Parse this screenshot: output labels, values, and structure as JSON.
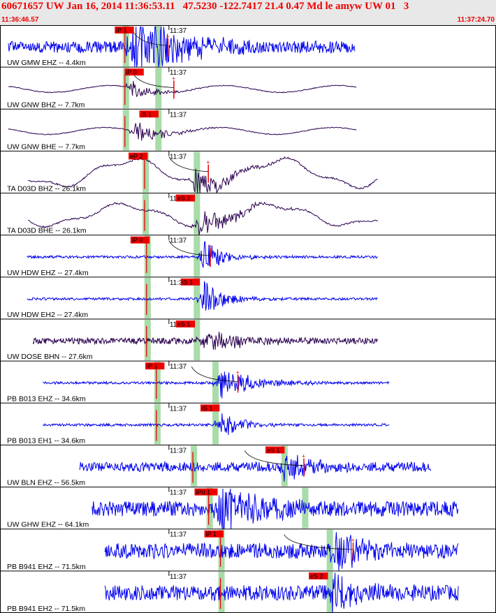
{
  "header": {
    "title": "60671657 UW Jan 16, 2014 11:36:53.11   47.5230 -122.7417 21.4 0.47 Md le amyw UW 01   3",
    "start_time": "11:36:46.57",
    "end_time": "11:37:24.70"
  },
  "chart_data": {
    "type": "seismogram",
    "time_window": [
      "11:36:46.57",
      "11:37:24.70"
    ],
    "minute_tick_label": "11:37",
    "colors": {
      "short_period": "#0000ee",
      "broadband": "#2a0050",
      "pick": "#ee0000",
      "phase_window": "#a8dca8",
      "header_bg": "#e8e8e8"
    },
    "traces": [
      {
        "label": "UW GMW EHZ -- 4.4km",
        "pick": "iP 1",
        "color": "#0000ee",
        "t_start": 0,
        "t_end": 35.2,
        "tick": 16.3,
        "pick_t": 10.8,
        "pick_dir": "up",
        "windows": [
          11.9,
          15.2
        ],
        "coda": [
          12.6,
          16.2
        ],
        "amp": 17,
        "burst_t": 12.2,
        "burst_width": 5.5,
        "burst_gain": 3.5,
        "nature": "noisy"
      },
      {
        "label": "UW GNW BHZ -- 7.7km",
        "pick": "iP 0",
        "color": "#2a0050",
        "t_start": 0,
        "t_end": 35.4,
        "tick": 16.3,
        "pick_t": 11.8,
        "pick_dir": "up",
        "windows": [
          11.9,
          15.2
        ],
        "coda": [
          12.6,
          16.8
        ],
        "amp": 9,
        "burst_t": 12.2,
        "burst_width": 3.0,
        "burst_gain": 1.5,
        "nature": "smooth"
      },
      {
        "label": "UW GNW BHE -- 7.7km",
        "pick": "iS 1",
        "color": "#2a0050",
        "t_start": 0,
        "t_end": 35.4,
        "tick": 16.3,
        "pick_t": 13.3,
        "pick_dir": "down",
        "windows": [
          11.9,
          15.2
        ],
        "coda": [],
        "amp": 9,
        "burst_t": 12.5,
        "burst_width": 3.5,
        "burst_gain": 1.8,
        "nature": "smooth"
      },
      {
        "label": "TA D03D BHZ -- 26.1km",
        "pick": "eP 2",
        "color": "#2a0050",
        "t_start": 2.0,
        "t_end": 37.5,
        "tick": 16.3,
        "pick_t": 12.2,
        "pick_dir": "up",
        "windows": [
          13.9,
          19.1
        ],
        "coda": [
          16.3,
          20.3
        ],
        "amp": 18,
        "burst_t": 18.5,
        "burst_width": 4.0,
        "burst_gain": 1.2,
        "nature": "swell"
      },
      {
        "label": "TA D03D BHE -- 26.1km",
        "pick": "eS 2",
        "color": "#2a0050",
        "t_start": 2.0,
        "t_end": 37.5,
        "tick": 16.3,
        "pick_t": 17.0,
        "pick_dir": "down",
        "windows": [
          13.9,
          19.1
        ],
        "coda": [],
        "amp": 14,
        "burst_t": 18.8,
        "burst_width": 4.5,
        "burst_gain": 1.6,
        "nature": "swell"
      },
      {
        "label": "UW HDW EHZ -- 27.4km",
        "pick": "iP 0",
        "color": "#0000ee",
        "t_start": 1.9,
        "t_end": 37.5,
        "tick": 16.3,
        "pick_t": 12.4,
        "pick_dir": "up",
        "windows": [
          14.1,
          19.1
        ],
        "coda": [
          16.3,
          20.5
        ],
        "amp": 8,
        "burst_t": 19.3,
        "burst_width": 3.0,
        "burst_gain": 3.0,
        "nature": "quiet"
      },
      {
        "label": "UW HDW EH2 -- 27.4km",
        "pick": "iS 1",
        "color": "#0000ee",
        "t_start": 1.9,
        "t_end": 37.5,
        "tick": 16.3,
        "pick_t": 17.5,
        "pick_dir": "down",
        "windows": [
          14.1,
          19.1
        ],
        "coda": [],
        "amp": 8,
        "burst_t": 19.4,
        "burst_width": 3.0,
        "burst_gain": 3.2,
        "nature": "quiet"
      },
      {
        "label": "UW DOSE BHN -- 27.6km",
        "pick": "eS 1",
        "color": "#2a0050",
        "t_start": 2.5,
        "t_end": 37.5,
        "tick": 16.3,
        "pick_t": 17.0,
        "pick_dir": "down",
        "windows": [
          14.1,
          19.1
        ],
        "coda": [],
        "amp": 9,
        "burst_t": 19.2,
        "burst_width": 5.0,
        "burst_gain": 1.8,
        "nature": "noisy"
      },
      {
        "label": "PB B013 EHZ -- 34.6km",
        "pick": "iP 1",
        "color": "#0000ee",
        "t_start": 3.5,
        "t_end": 38.7,
        "tick": 16.3,
        "pick_t": 13.9,
        "pick_dir": "up",
        "windows": [
          15.1,
          21.0
        ],
        "coda": [
          18.6,
          23.3
        ],
        "amp": 8,
        "burst_t": 21.0,
        "burst_width": 4.5,
        "burst_gain": 3.0,
        "nature": "quiet"
      },
      {
        "label": "PB B013 EH1 -- 34.6km",
        "pick": "iS 1",
        "color": "#0000ee",
        "t_start": 3.5,
        "t_end": 38.7,
        "tick": 16.3,
        "pick_t": 19.5,
        "pick_dir": "down",
        "windows": [
          15.1,
          21.0
        ],
        "coda": [],
        "amp": 8,
        "burst_t": 21.1,
        "burst_width": 3.0,
        "burst_gain": 2.5,
        "nature": "quiet"
      },
      {
        "label": "UW BLN EHZ -- 56.5km",
        "pick": "eS 1",
        "color": "#0000ee",
        "t_start": 7.2,
        "t_end": 42.9,
        "tick": 16.3,
        "pick_t": 26.1,
        "pick_dir": "down",
        "windows": [
          18.8,
          28.0
        ],
        "coda": [
          24.0,
          30.0
        ],
        "amp": 14,
        "burst_t": 27.5,
        "burst_width": 3.5,
        "burst_gain": 1.8,
        "nature": "noisy"
      },
      {
        "label": "UW GHW EHZ -- 64.1km",
        "pick": "iPd 1",
        "color": "#0000ee",
        "t_start": 8.5,
        "t_end": 45.7,
        "tick": 16.3,
        "pick_t": 18.9,
        "pick_dir": "up",
        "windows": [
          20.4,
          30.1
        ],
        "coda": [],
        "amp": 22,
        "burst_t": 21.0,
        "burst_width": 5.0,
        "burst_gain": 1.6,
        "nature": "noisy"
      },
      {
        "label": "PB B941 EHZ -- 71.5km",
        "pick": "iP 1",
        "color": "#0000ee",
        "t_start": 9.8,
        "t_end": 45.7,
        "tick": 16.3,
        "pick_t": 19.9,
        "pick_dir": "up",
        "windows": [
          21.6,
          32.6
        ],
        "coda": [
          28.0,
          35.0
        ],
        "amp": 22,
        "burst_t": 32.8,
        "burst_width": 3.0,
        "burst_gain": 1.6,
        "nature": "noisy"
      },
      {
        "label": "PB B941 EH2 -- 71.5km",
        "pick": "eS 2",
        "color": "#0000ee",
        "t_start": 9.8,
        "t_end": 45.7,
        "tick": 16.3,
        "pick_t": 30.5,
        "pick_dir": "down",
        "windows": [
          21.6,
          32.6
        ],
        "coda": [],
        "amp": 22,
        "burst_t": 32.5,
        "burst_width": 3.0,
        "burst_gain": 1.8,
        "nature": "noisy"
      }
    ]
  }
}
